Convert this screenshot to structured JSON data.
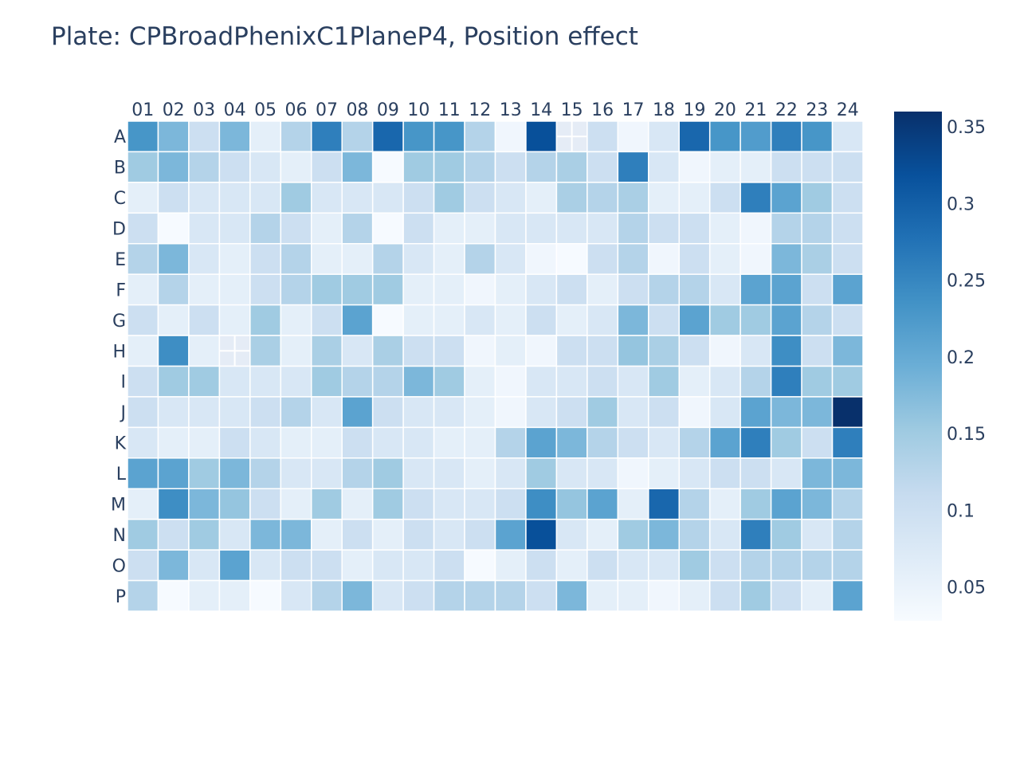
{
  "chart_data": {
    "type": "heatmap",
    "title": "Plate: CPBroadPhenixC1PlaneP4, Position effect",
    "columns": [
      "01",
      "02",
      "03",
      "04",
      "05",
      "06",
      "07",
      "08",
      "09",
      "10",
      "11",
      "12",
      "13",
      "14",
      "15",
      "16",
      "17",
      "18",
      "19",
      "20",
      "21",
      "22",
      "23",
      "24"
    ],
    "rows": [
      "A",
      "B",
      "C",
      "D",
      "E",
      "F",
      "G",
      "H",
      "I",
      "J",
      "K",
      "L",
      "M",
      "N",
      "O",
      "P"
    ],
    "values": [
      [
        0.23,
        0.18,
        0.1,
        0.18,
        0.06,
        0.13,
        0.26,
        0.13,
        0.29,
        0.23,
        0.23,
        0.13,
        0.04,
        0.32,
        null,
        0.1,
        0.04,
        0.08,
        0.29,
        0.23,
        0.22,
        0.26,
        0.23,
        0.08
      ],
      [
        0.15,
        0.18,
        0.13,
        0.1,
        0.08,
        0.06,
        0.1,
        0.18,
        0.03,
        0.15,
        0.15,
        0.13,
        0.1,
        0.13,
        0.14,
        0.1,
        0.26,
        0.08,
        0.04,
        0.06,
        0.06,
        0.1,
        0.1,
        0.1
      ],
      [
        0.06,
        0.1,
        0.08,
        0.08,
        0.08,
        0.15,
        0.08,
        0.08,
        0.08,
        0.1,
        0.15,
        0.1,
        0.08,
        0.06,
        0.14,
        0.13,
        0.14,
        0.06,
        0.06,
        0.1,
        0.26,
        0.21,
        0.15,
        0.1
      ],
      [
        0.1,
        0.03,
        0.08,
        0.08,
        0.13,
        0.1,
        0.06,
        0.13,
        0.03,
        0.1,
        0.06,
        0.06,
        0.08,
        0.08,
        0.08,
        0.08,
        0.13,
        0.1,
        0.1,
        0.06,
        0.04,
        0.13,
        0.13,
        0.1
      ],
      [
        0.13,
        0.18,
        0.08,
        0.06,
        0.1,
        0.13,
        0.06,
        0.06,
        0.13,
        0.08,
        0.06,
        0.13,
        0.08,
        0.04,
        0.03,
        0.1,
        0.13,
        0.04,
        0.1,
        0.06,
        0.04,
        0.18,
        0.14,
        0.1
      ],
      [
        0.06,
        0.13,
        0.06,
        0.06,
        0.1,
        0.13,
        0.15,
        0.15,
        0.15,
        0.06,
        0.06,
        0.04,
        0.06,
        0.08,
        0.1,
        0.06,
        0.1,
        0.13,
        0.13,
        0.08,
        0.21,
        0.21,
        0.1,
        0.21
      ],
      [
        0.1,
        0.06,
        0.1,
        0.06,
        0.15,
        0.06,
        0.1,
        0.21,
        0.03,
        0.06,
        0.06,
        0.08,
        0.06,
        0.1,
        0.06,
        0.08,
        0.18,
        0.1,
        0.21,
        0.15,
        0.15,
        0.21,
        0.13,
        0.1
      ],
      [
        0.06,
        0.24,
        0.06,
        null,
        0.14,
        0.06,
        0.14,
        0.08,
        0.14,
        0.1,
        0.1,
        0.04,
        0.06,
        0.04,
        0.1,
        0.1,
        0.16,
        0.14,
        0.1,
        0.04,
        0.08,
        0.24,
        0.1,
        0.18
      ],
      [
        0.1,
        0.15,
        0.15,
        0.08,
        0.08,
        0.08,
        0.15,
        0.13,
        0.13,
        0.18,
        0.15,
        0.06,
        0.04,
        0.08,
        0.08,
        0.1,
        0.08,
        0.15,
        0.06,
        0.08,
        0.13,
        0.26,
        0.15,
        0.15
      ],
      [
        0.1,
        0.08,
        0.08,
        0.08,
        0.1,
        0.13,
        0.08,
        0.21,
        0.1,
        0.08,
        0.08,
        0.06,
        0.04,
        0.08,
        0.1,
        0.15,
        0.08,
        0.1,
        0.04,
        0.08,
        0.21,
        0.18,
        0.18,
        0.36
      ],
      [
        0.08,
        0.06,
        0.06,
        0.1,
        0.08,
        0.06,
        0.06,
        0.1,
        0.08,
        0.08,
        0.06,
        0.06,
        0.13,
        0.21,
        0.18,
        0.13,
        0.1,
        0.08,
        0.13,
        0.21,
        0.26,
        0.15,
        0.1,
        0.26
      ],
      [
        0.21,
        0.21,
        0.15,
        0.18,
        0.13,
        0.08,
        0.08,
        0.13,
        0.15,
        0.08,
        0.08,
        0.06,
        0.08,
        0.15,
        0.08,
        0.08,
        0.04,
        0.06,
        0.08,
        0.1,
        0.1,
        0.08,
        0.18,
        0.18
      ],
      [
        0.06,
        0.24,
        0.18,
        0.16,
        0.1,
        0.06,
        0.15,
        0.06,
        0.15,
        0.1,
        0.08,
        0.08,
        0.1,
        0.24,
        0.16,
        0.21,
        0.06,
        0.29,
        0.13,
        0.06,
        0.15,
        0.21,
        0.18,
        0.13
      ],
      [
        0.15,
        0.1,
        0.15,
        0.08,
        0.18,
        0.18,
        0.06,
        0.1,
        0.06,
        0.1,
        0.08,
        0.1,
        0.21,
        0.32,
        0.08,
        0.06,
        0.15,
        0.18,
        0.13,
        0.08,
        0.26,
        0.15,
        0.08,
        0.13
      ],
      [
        0.1,
        0.18,
        0.08,
        0.21,
        0.08,
        0.1,
        0.1,
        0.06,
        0.08,
        0.08,
        0.1,
        0.03,
        0.06,
        0.1,
        0.06,
        0.1,
        0.08,
        0.08,
        0.15,
        0.1,
        0.13,
        0.13,
        0.13,
        0.13
      ],
      [
        0.13,
        0.03,
        0.06,
        0.06,
        0.03,
        0.08,
        0.13,
        0.18,
        0.08,
        0.1,
        0.13,
        0.13,
        0.13,
        0.1,
        0.18,
        0.06,
        0.06,
        0.04,
        0.06,
        0.1,
        0.15,
        0.1,
        0.06,
        0.21
      ]
    ],
    "zmin": 0.028,
    "zmax": 0.36,
    "colorscale": "Blues",
    "colorscale_stops": [
      "#f7fbff",
      "#deebf7",
      "#c6dbef",
      "#9ecae1",
      "#6baed6",
      "#4292c6",
      "#2171b5",
      "#08519c",
      "#08306b"
    ],
    "colorbar_ticks": [
      {
        "value": 0.05,
        "label": "0.05"
      },
      {
        "value": 0.1,
        "label": "0.1"
      },
      {
        "value": 0.15,
        "label": "0.15"
      },
      {
        "value": 0.2,
        "label": "0.2"
      },
      {
        "value": 0.25,
        "label": "0.25"
      },
      {
        "value": 0.3,
        "label": "0.3"
      },
      {
        "value": 0.35,
        "label": "0.35"
      }
    ],
    "x_axis_side": "top",
    "grid": false,
    "legend": "colorbar-right"
  }
}
